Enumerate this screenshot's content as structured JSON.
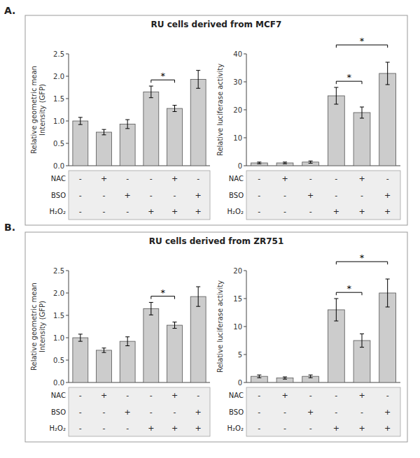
{
  "chart_data": [
    {
      "type": "bar",
      "title": "RU cells derived from MCF7",
      "panel_label": "A.",
      "categories": [
        null,
        null,
        null,
        null,
        null,
        null
      ],
      "values": [
        1.0,
        0.75,
        0.93,
        1.65,
        1.28,
        1.93
      ],
      "errors": [
        0.08,
        0.06,
        0.1,
        0.13,
        0.07,
        0.2
      ],
      "color": "#cccccc",
      "ylabel": "Relative geometric mean\nIntensity (GFP)",
      "ylim": [
        0,
        2.5
      ],
      "yticks": [
        {
          "value": 0.0,
          "label": "0.0"
        },
        0.5,
        {
          "value": 1.0,
          "label": "1.0"
        },
        1.5,
        {
          "value": 2.0,
          "label": "2.0"
        },
        2.5
      ],
      "annotations": [
        {
          "text": "*",
          "between": [
            3,
            4
          ]
        }
      ],
      "table": [
        {
          "name": "NAC",
          "values": [
            "-",
            "+",
            "-",
            "-",
            "+",
            "-"
          ]
        },
        {
          "name": "BSO",
          "values": [
            "-",
            "-",
            "+",
            "-",
            "-",
            "+"
          ]
        },
        {
          "name": "H₂O₂",
          "values": [
            "-",
            "-",
            "-",
            "+",
            "+",
            "+"
          ]
        }
      ]
    },
    {
      "type": "bar",
      "categories": [
        null,
        null,
        null,
        null,
        null,
        null
      ],
      "values": [
        1.0,
        1.0,
        1.3,
        25.0,
        19.0,
        33.0
      ],
      "errors": [
        0.3,
        0.3,
        0.4,
        3.0,
        2.0,
        4.0
      ],
      "color": "#cccccc",
      "ylabel": "Relative luciferase activity",
      "ylim": [
        0,
        40
      ],
      "yticks": [
        0,
        10,
        20,
        30,
        40
      ],
      "annotations": [
        {
          "text": "*",
          "between": [
            3,
            4
          ]
        },
        {
          "text": "*",
          "between": [
            3,
            5
          ]
        }
      ],
      "table": [
        {
          "name": "NAC",
          "values": [
            "-",
            "+",
            "-",
            "-",
            "+",
            "-"
          ]
        },
        {
          "name": "BSO",
          "values": [
            "-",
            "-",
            "+",
            "-",
            "-",
            "+"
          ]
        },
        {
          "name": "H₂O₂",
          "values": [
            "-",
            "-",
            "-",
            "+",
            "+",
            "+"
          ]
        }
      ]
    },
    {
      "type": "bar",
      "title": "RU cells derived from ZR751",
      "panel_label": "B.",
      "categories": [
        null,
        null,
        null,
        null,
        null,
        null
      ],
      "values": [
        1.0,
        0.72,
        0.92,
        1.65,
        1.28,
        1.92
      ],
      "errors": [
        0.08,
        0.05,
        0.1,
        0.14,
        0.07,
        0.22
      ],
      "color": "#cccccc",
      "ylabel": "Relative geometric mean\nIntensity (GFP)",
      "ylim": [
        0,
        2.5
      ],
      "yticks": [
        {
          "value": 0.0,
          "label": "0.0"
        },
        0.5,
        {
          "value": 1.0,
          "label": "1.0"
        },
        1.5,
        {
          "value": 2.0,
          "label": "2.0"
        },
        2.5
      ],
      "annotations": [
        {
          "text": "*",
          "between": [
            3,
            4
          ]
        }
      ],
      "table": [
        {
          "name": "NAC",
          "values": [
            "-",
            "+",
            "-",
            "-",
            "+",
            "-"
          ]
        },
        {
          "name": "BSO",
          "values": [
            "-",
            "-",
            "+",
            "-",
            "-",
            "+"
          ]
        },
        {
          "name": "H₂O₂",
          "values": [
            "-",
            "-",
            "-",
            "+",
            "+",
            "+"
          ]
        }
      ]
    },
    {
      "type": "bar",
      "categories": [
        null,
        null,
        null,
        null,
        null,
        null
      ],
      "values": [
        1.1,
        0.8,
        1.1,
        13.0,
        7.5,
        16.0
      ],
      "errors": [
        0.25,
        0.2,
        0.25,
        2.0,
        1.2,
        2.5
      ],
      "color": "#cccccc",
      "ylabel": "Relative luciferase activity",
      "ylim": [
        0,
        20
      ],
      "yticks": [
        0,
        5,
        10,
        15,
        20
      ],
      "annotations": [
        {
          "text": "*",
          "between": [
            3,
            4
          ]
        },
        {
          "text": "*",
          "between": [
            3,
            5
          ]
        }
      ],
      "table": [
        {
          "name": "NAC",
          "values": [
            "-",
            "+",
            "-",
            "-",
            "+",
            "-"
          ]
        },
        {
          "name": "BSO",
          "values": [
            "-",
            "-",
            "+",
            "-",
            "-",
            "+"
          ]
        },
        {
          "name": "H₂O₂",
          "values": [
            "-",
            "-",
            "-",
            "+",
            "+",
            "+"
          ]
        }
      ]
    }
  ]
}
